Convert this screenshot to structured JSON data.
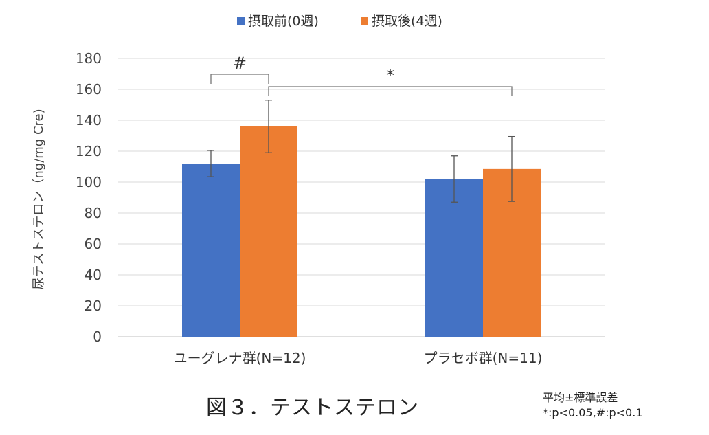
{
  "chart_data": {
    "type": "bar",
    "title": "",
    "ylabel": "尿テストステロン（ng/mg Cre)",
    "xlabel": "",
    "ylim": [
      0,
      180
    ],
    "yticks": [
      0,
      20,
      40,
      60,
      80,
      100,
      120,
      140,
      160,
      180
    ],
    "grid": true,
    "legend_position": "top",
    "categories": [
      "ユーグレナ群(N=12)",
      "プラセボ群(N=11)"
    ],
    "series": [
      {
        "name": "摂取前(0週)",
        "color": "#4472C4",
        "values": [
          112,
          102
        ],
        "errors": [
          8.5,
          15
        ]
      },
      {
        "name": "摂取後(4週)",
        "color": "#ED7D31",
        "values": [
          136,
          108.5
        ],
        "errors": [
          17,
          21
        ]
      }
    ],
    "annotations": [
      {
        "label": "#",
        "type": "bracket",
        "from": {
          "category": 0,
          "series": 0
        },
        "to": {
          "category": 0,
          "series": 1
        }
      },
      {
        "label": "*",
        "type": "bracket",
        "from": {
          "category": 0,
          "series": 1
        },
        "to": {
          "category": 1,
          "series": 1
        }
      }
    ]
  },
  "caption": "図３．テストステロン",
  "footnote": {
    "line1": "平均±標準誤差",
    "line2": "*:p<0.05,#:p<0.1"
  }
}
